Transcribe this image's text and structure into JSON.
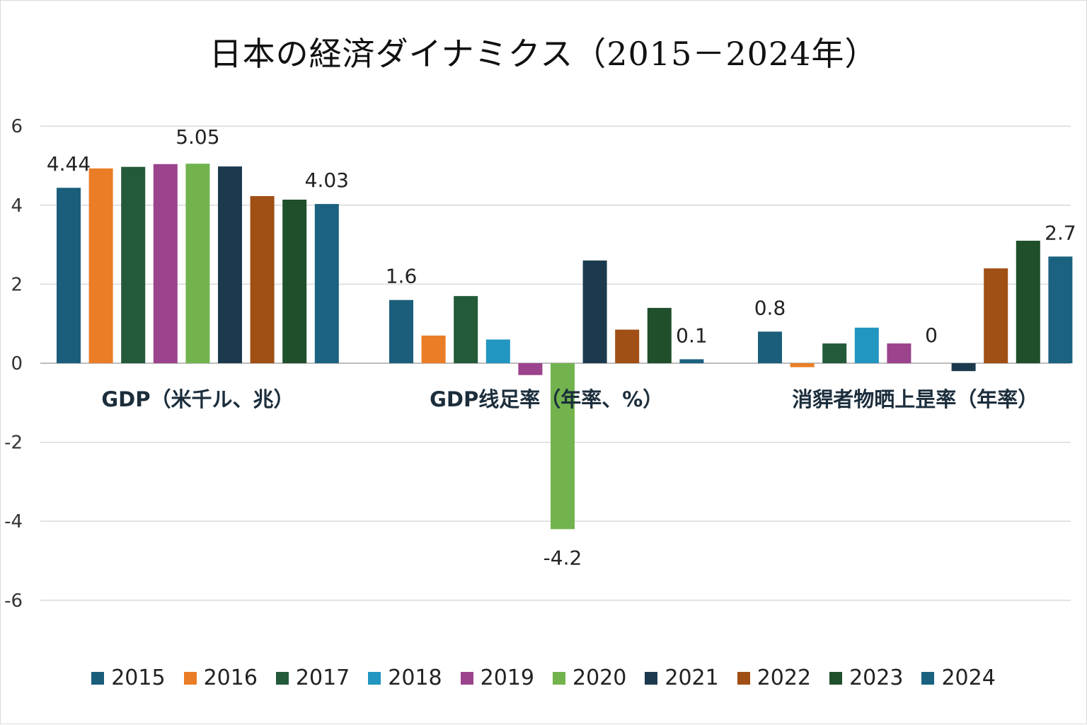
{
  "chart_data": {
    "type": "bar",
    "title": "日本の経済ダイナミクス（2015－2024年）",
    "categories": [
      "GDP（米千ル、兆）",
      "GDP线足率（年率、%）",
      "消貋者物晒上昰率（年率）"
    ],
    "ylim": [
      -6,
      6
    ],
    "yticks": [
      6,
      4,
      2,
      0,
      -2,
      -4,
      -6
    ],
    "grid": true,
    "legend_position": "bottom",
    "series": [
      {
        "name": "2015",
        "color": "#1b5e7b",
        "values": [
          4.44,
          1.6,
          0.8
        ]
      },
      {
        "name": "2016",
        "color": "#ea7d26",
        "values": [
          4.93,
          0.7,
          -0.1
        ]
      },
      {
        "name": "2017",
        "color": "#235a3a",
        "values": [
          4.97,
          1.7,
          0.5
        ]
      },
      {
        "name": "2018",
        "color": "#2196c0",
        "values": [
          null,
          0.6,
          0.9
        ]
      },
      {
        "name": "2019",
        "color": "#9b438c",
        "values": [
          5.04,
          -0.3,
          0.5
        ]
      },
      {
        "name": "2020",
        "color": "#72b34e",
        "values": [
          5.05,
          -4.2,
          0
        ]
      },
      {
        "name": "2021",
        "color": "#1b3a4e",
        "values": [
          4.98,
          2.6,
          -0.2
        ]
      },
      {
        "name": "2022",
        "color": "#a04f15",
        "values": [
          4.23,
          0.85,
          2.4
        ]
      },
      {
        "name": "2023",
        "color": "#1f4f2b",
        "values": [
          4.14,
          1.4,
          3.1
        ]
      },
      {
        "name": "2024",
        "color": "#1b6280",
        "values": [
          4.03,
          0.1,
          2.7
        ]
      }
    ],
    "data_labels": [
      {
        "series": "2015",
        "labels": [
          "4.44",
          "1.6",
          "0.8"
        ]
      },
      {
        "series": "2020",
        "labels": [
          "5.05",
          "-4.2",
          "0"
        ]
      },
      {
        "series": "2024",
        "labels": [
          "4.03",
          "0.1",
          "2.7"
        ]
      }
    ]
  }
}
